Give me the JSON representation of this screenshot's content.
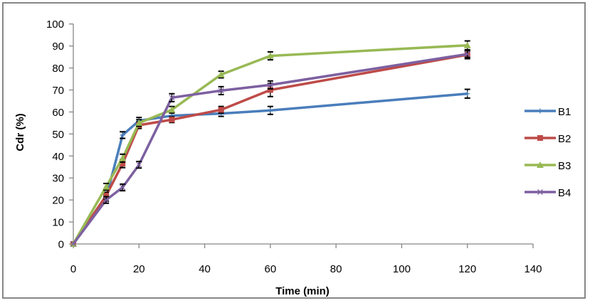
{
  "chart_data": {
    "type": "line",
    "title": "",
    "xlabel": "Time (min)",
    "ylabel": "Cdr (%)",
    "xlim": [
      0,
      140
    ],
    "ylim": [
      0,
      100
    ],
    "xticks": [
      0,
      20,
      40,
      60,
      80,
      100,
      120,
      140
    ],
    "yticks": [
      0,
      10,
      20,
      30,
      40,
      50,
      60,
      70,
      80,
      90,
      100
    ],
    "grid": false,
    "legend_position": "right",
    "x": [
      0,
      10,
      15,
      20,
      30,
      45,
      60,
      120
    ],
    "series": [
      {
        "name": "B1",
        "color": "#4A7EBB",
        "marker": "plus",
        "values": [
          0,
          21,
          49.5,
          56,
          58.3,
          59.3,
          60.7,
          68.3
        ],
        "errors": [
          0,
          1.5,
          1.5,
          1.5,
          1.5,
          1.3,
          1.8,
          2
        ]
      },
      {
        "name": "B2",
        "color": "#BE4B48",
        "marker": "square",
        "values": [
          0,
          22,
          36.5,
          54,
          56.5,
          61,
          70,
          86
        ],
        "errors": [
          0,
          1.5,
          1.8,
          1.5,
          1.3,
          1.5,
          3,
          1.8
        ]
      },
      {
        "name": "B3",
        "color": "#98B954",
        "marker": "triangle",
        "values": [
          0,
          26,
          39,
          55,
          61,
          77,
          85.5,
          90.3
        ],
        "errors": [
          0,
          1.5,
          1.8,
          1.5,
          1.5,
          1.5,
          1.8,
          2
        ]
      },
      {
        "name": "B4",
        "color": "#7D60A0",
        "marker": "x",
        "values": [
          0,
          20,
          25.7,
          36,
          66.5,
          69.7,
          72.3,
          86.3
        ],
        "errors": [
          0,
          1.5,
          1.5,
          1.5,
          1.8,
          1.8,
          1.8,
          1.5
        ]
      }
    ]
  }
}
